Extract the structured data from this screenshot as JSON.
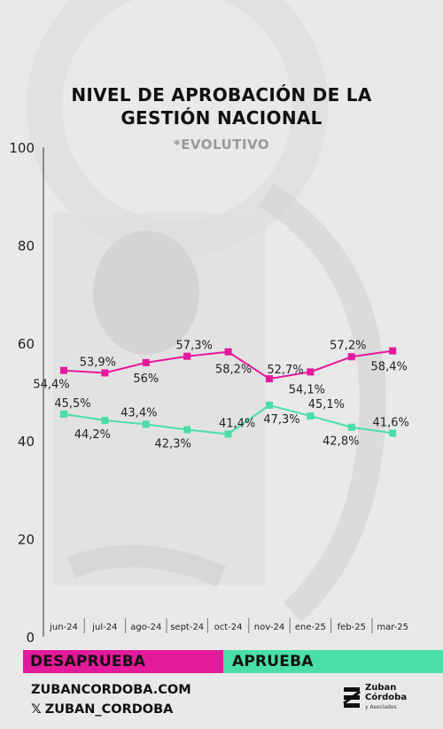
{
  "title_line1": "NIVEL DE APROBACIÓN DE LA",
  "title_line2": "GESTIÓN NACIONAL",
  "subtitle": "*EVOLUTIVO",
  "colors": {
    "desaprueba": "#e5199b",
    "aprueba": "#49dfa6",
    "background": "#e9e9e9"
  },
  "chart_data": {
    "type": "line",
    "categories": [
      "jun-24",
      "jul-24",
      "ago-24",
      "sept-24",
      "oct-24",
      "nov-24",
      "ene-25",
      "feb-25",
      "mar-25"
    ],
    "series": [
      {
        "name": "DESAPRUEBA",
        "values": [
          54.4,
          53.9,
          56,
          57.3,
          58.2,
          52.7,
          54.1,
          57.2,
          58.4
        ],
        "labels": [
          "54,4%",
          "53,9%",
          "56%",
          "57,3%",
          "58,2%",
          "52,7%",
          "54,1%",
          "57,2%",
          "58,4%"
        ]
      },
      {
        "name": "APRUEBA",
        "values": [
          45.5,
          44.2,
          43.4,
          42.3,
          41.4,
          47.3,
          45.1,
          42.8,
          41.6
        ],
        "labels": [
          "45,5%",
          "44,2%",
          "43,4%",
          "42,3%",
          "41,4%",
          "47,3%",
          "45,1%",
          "42,8%",
          "41,6%"
        ]
      }
    ],
    "ylim": [
      0,
      100
    ],
    "yticks": [
      0,
      20,
      40,
      60,
      80,
      100
    ],
    "ytick_labels": [
      "0",
      "20",
      "40",
      "60",
      "80",
      "100"
    ],
    "grid": false,
    "legend": "bottom"
  },
  "legend": {
    "desaprueba": "DESAPRUEBA",
    "aprueba": "APRUEBA"
  },
  "footer": {
    "website": "ZUBANCORDOBA.COM",
    "x_prefix": "𝕏",
    "handle": "ZUBAN_CORDOBA",
    "logo_line1": "Zuban",
    "logo_line2": "Córdoba",
    "logo_sub": "y Asociados"
  }
}
